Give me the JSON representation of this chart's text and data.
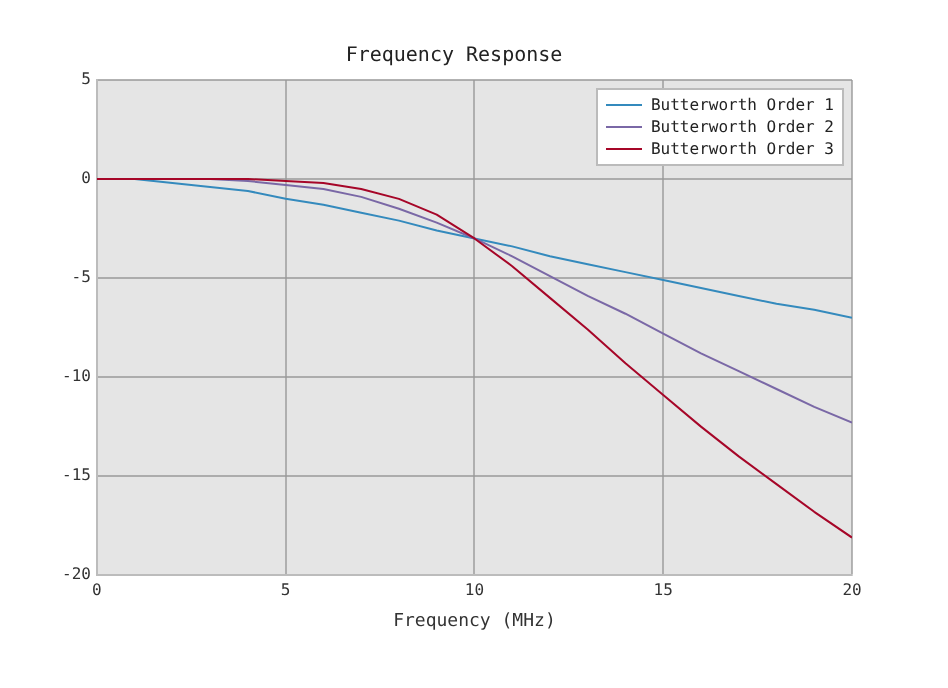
{
  "chart_data": {
    "type": "line",
    "title": "Frequency Response",
    "xlabel": "Frequency (MHz)",
    "x": [
      0,
      1,
      2,
      3,
      4,
      5,
      6,
      7,
      8,
      9,
      10,
      11,
      12,
      13,
      14,
      15,
      16,
      17,
      18,
      19,
      20
    ],
    "series": [
      {
        "name": "Butterworth Order 1",
        "color": "#348abd",
        "values": [
          0,
          0,
          -0.2,
          -0.4,
          -0.6,
          -1,
          -1.3,
          -1.7,
          -2.1,
          -2.6,
          -3,
          -3.4,
          -3.9,
          -4.3,
          -4.7,
          -5.1,
          -5.5,
          -5.9,
          -6.3,
          -6.6,
          -7
        ]
      },
      {
        "name": "Butterworth Order 2",
        "color": "#7a68a6",
        "values": [
          0,
          0,
          0,
          0,
          -0.1,
          -0.3,
          -0.5,
          -0.9,
          -1.5,
          -2.2,
          -3,
          -3.9,
          -4.9,
          -5.9,
          -6.8,
          -7.8,
          -8.8,
          -9.7,
          -10.6,
          -11.5,
          -12.3
        ]
      },
      {
        "name": "Butterworth Order 3",
        "color": "#a60628",
        "values": [
          0,
          0,
          0,
          0,
          0,
          -0.1,
          -0.2,
          -0.5,
          -1,
          -1.8,
          -3,
          -4.4,
          -6,
          -7.6,
          -9.3,
          -10.9,
          -12.5,
          -14,
          -15.4,
          -16.8,
          -18.1
        ]
      }
    ],
    "xlim": [
      0,
      20
    ],
    "xticks": [
      0,
      5,
      10,
      15,
      20
    ],
    "ylim": [
      -20,
      5
    ],
    "yticks": [
      -20,
      -15,
      -10,
      -5,
      0,
      5
    ],
    "grid": true,
    "legend": "top right",
    "marker": "none",
    "line_style": "solid"
  }
}
